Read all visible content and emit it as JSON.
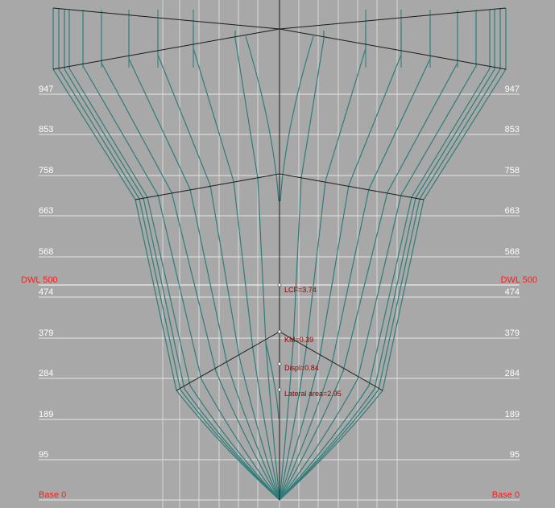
{
  "waterlines": [
    {
      "label": "947"
    },
    {
      "label": "853"
    },
    {
      "label": "758"
    },
    {
      "label": "663"
    },
    {
      "label": "568"
    },
    {
      "label": "474"
    },
    {
      "label": "379"
    },
    {
      "label": "284"
    },
    {
      "label": "189"
    },
    {
      "label": "95"
    }
  ],
  "dwl": {
    "label": "DWL 500"
  },
  "base": {
    "label": "Base 0"
  },
  "hydrostatics": {
    "lcf": "LCF=3.74",
    "km": "KM=0.39",
    "displ": "Displ=0.84",
    "lateral_area": "Lateral area=2.95"
  },
  "colors": {
    "background": "#a8a8a8",
    "grid": "#e6e6e6",
    "station": "#2e7d7a",
    "frame": "#1a1a1a",
    "label": "#ffffff",
    "reference": "#ff1a1a"
  }
}
